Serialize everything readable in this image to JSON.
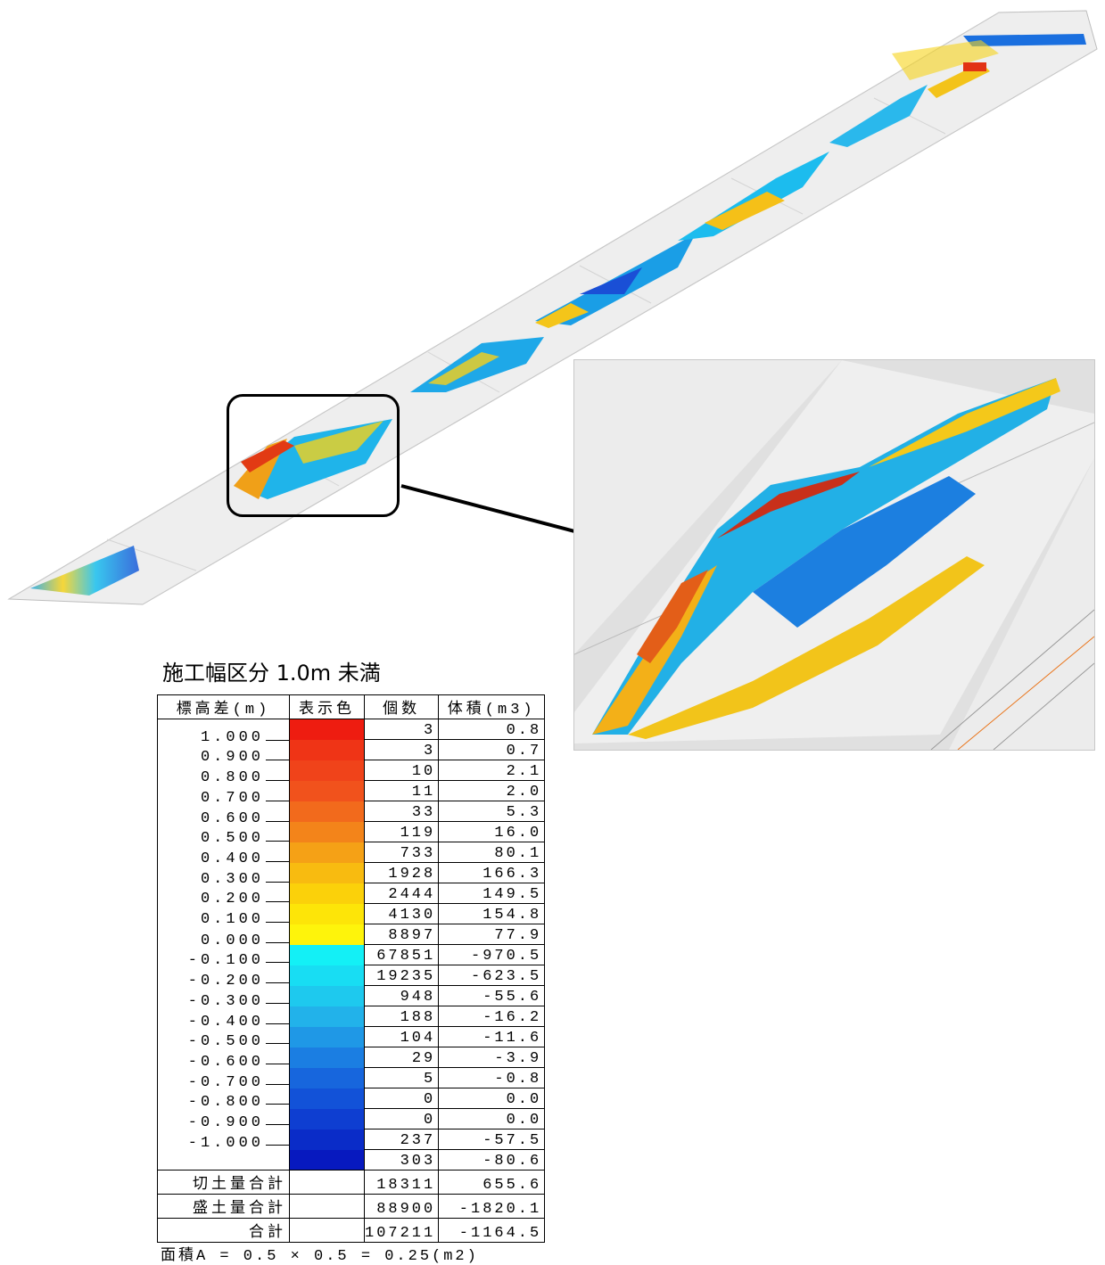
{
  "title": "施工幅区分 1.0m 未満",
  "headers": [
    "標高差(m)",
    "表示色",
    "個数",
    "体積(m3)"
  ],
  "tick_labels": [
    "1.000",
    "0.900",
    "0.800",
    "0.700",
    "0.600",
    "0.500",
    "0.400",
    "0.300",
    "0.200",
    "0.100",
    "0.000",
    "-0.100",
    "-0.200",
    "-0.300",
    "-0.400",
    "-0.500",
    "-0.600",
    "-0.700",
    "-0.800",
    "-0.900",
    "-1.000"
  ],
  "colors": [
    "#ee1c10",
    "#ef3416",
    "#f0431a",
    "#f1521c",
    "#f26a1c",
    "#f3841a",
    "#f5a116",
    "#f8bb10",
    "#fbd10a",
    "#fde508",
    "#fef40b",
    "#13f0f6",
    "#18ddf3",
    "#1ec9ee",
    "#22b2ea",
    "#1f98e6",
    "#1b7ee2",
    "#1766dd",
    "#1252d8",
    "#0e3ed1",
    "#0a2cc8",
    "#0719bf"
  ],
  "counts": [
    "3",
    "3",
    "10",
    "11",
    "33",
    "119",
    "733",
    "1928",
    "2444",
    "4130",
    "8897",
    "67851",
    "19235",
    "948",
    "188",
    "104",
    "29",
    "5",
    "0",
    "0",
    "237",
    "303"
  ],
  "volumes": [
    "0.8",
    "0.7",
    "2.1",
    "2.0",
    "5.3",
    "16.0",
    "80.1",
    "166.3",
    "149.5",
    "154.8",
    "77.9",
    "-970.5",
    "-623.5",
    "-55.6",
    "-16.2",
    "-11.6",
    "-3.9",
    "-0.8",
    "0.0",
    "0.0",
    "-57.5",
    "-80.6"
  ],
  "totals": [
    {
      "label": "切土量合計",
      "count": "18311",
      "volume": "655.6"
    },
    {
      "label": "盛土量合計",
      "count": "88900",
      "volume": "-1820.1"
    },
    {
      "label": "合計",
      "count": "107211",
      "volume": "-1164.5"
    }
  ],
  "formula": "面積A = 0.5 × 0.5 = 0.25(m2)"
}
